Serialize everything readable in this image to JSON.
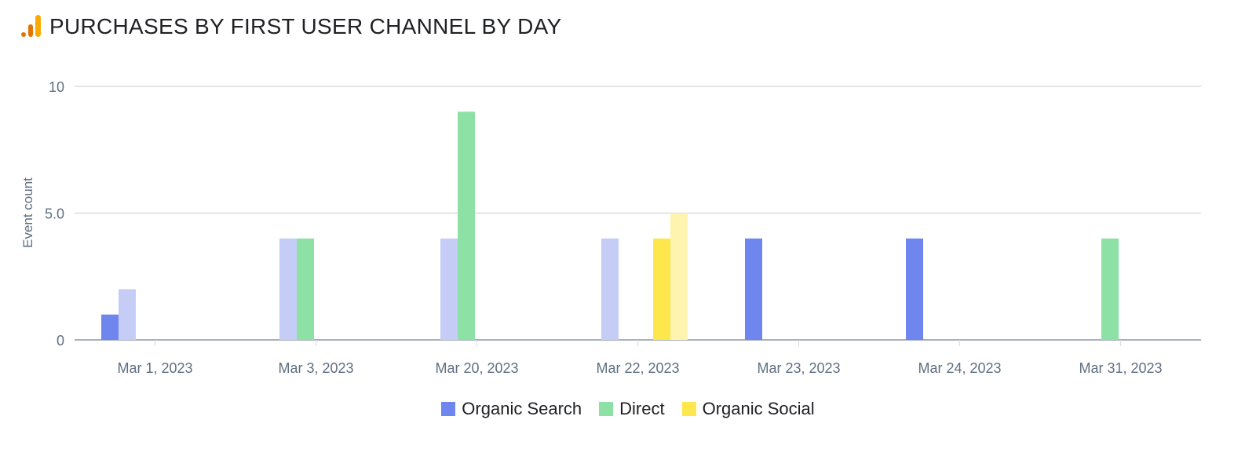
{
  "header": {
    "title": "PURCHASES BY FIRST USER CHANNEL BY DAY",
    "logo_icon": "analytics-bars-icon"
  },
  "colors": {
    "organic_search": "#6f86ef",
    "organic_search_light": "#c5cdf6",
    "direct": "#8ee1a5",
    "direct_light": "#c3f0d0",
    "organic_social": "#fde74c",
    "organic_social_light": "#fff3b0",
    "grid": "#dadce0",
    "axis": "#8c97a6",
    "tick_text": "#5f6f82"
  },
  "chart_data": {
    "type": "bar",
    "ylabel": "Event count",
    "xlabel": "",
    "ylim": [
      0,
      10
    ],
    "y_ticks": [
      0,
      5,
      10
    ],
    "y_tick_labels": [
      "0",
      "5.0",
      "10"
    ],
    "categories": [
      "Mar 1, 2023",
      "Mar 3, 2023",
      "Mar 20, 2023",
      "Mar 22, 2023",
      "Mar 23, 2023",
      "Mar 24, 2023",
      "Mar 31, 2023"
    ],
    "series": [
      {
        "name": "Organic Search",
        "key": "organic_search",
        "values": [
          1,
          0,
          0,
          0,
          4,
          4,
          0
        ],
        "comparison_values": [
          2,
          4,
          4,
          4,
          0,
          0,
          0
        ]
      },
      {
        "name": "Direct",
        "key": "direct",
        "values": [
          0,
          4,
          9,
          0,
          0,
          0,
          4
        ],
        "comparison_values": [
          0,
          0,
          0,
          0,
          0,
          0,
          0
        ]
      },
      {
        "name": "Organic Social",
        "key": "organic_social",
        "values": [
          0,
          0,
          0,
          4,
          0,
          0,
          0
        ],
        "comparison_values": [
          0,
          0,
          0,
          5,
          0,
          0,
          0
        ]
      }
    ],
    "grid": true,
    "legend_position": "bottom-center"
  }
}
